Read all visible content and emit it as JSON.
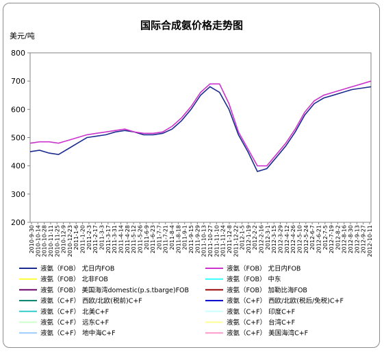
{
  "chart_data": {
    "type": "line",
    "title": "国际合成氨价格走势图",
    "ylabel": "美元/吨",
    "xlabel": "",
    "ylim": [
      200,
      800
    ],
    "y_ticks": [
      200,
      300,
      400,
      500,
      600,
      700,
      800
    ],
    "grid": false,
    "legend_position": "bottom",
    "x": [
      "2010-9-30",
      "2010-10-21",
      "2010-11-11",
      "2010-12-2",
      "2010-12-23",
      "2011-1-13",
      "2011-2-3",
      "2011-2-24",
      "2011-3-17",
      "2011-4-7",
      "2011-4-28",
      "2011-5-19",
      "2011-6-9",
      "2011-6-30",
      "2011-7-21",
      "2011-8-11",
      "2011-9-1",
      "2011-9-22",
      "2011-10-13",
      "2011-11-3",
      "2011-11-24",
      "2011-12-15",
      "2012-1-5",
      "2012-1-26",
      "2012-2-16",
      "2012-3-8",
      "2012-3-29",
      "2012-4-19",
      "2012-5-10",
      "2012-5-31",
      "2012-6-21",
      "2012-7-12",
      "2012-8-2",
      "2012-8-23",
      "2012-9-13",
      "2012-10-4",
      "2012-10-25"
    ],
    "x_tick_labels": [
      "2010-9-30",
      "2010-10-14",
      "2010-10-28",
      "2010-11-11",
      "2010-11-25",
      "2010-12-9",
      "2010-12-23",
      "2011-1-6",
      "2011-1-20",
      "2011-2-3",
      "2011-2-17",
      "2011-3-3",
      "2011-3-17",
      "2011-3-31",
      "2011-4-14",
      "2011-4-28",
      "2011-5-12",
      "2011-5-26",
      "2011-6-9",
      "2011-6-23",
      "2011-7-7",
      "2011-7-21",
      "2011-8-4",
      "2011-8-18",
      "2011-9-1",
      "2011-9-15",
      "2011-9-29",
      "2011-10-13",
      "2011-10-27",
      "2011-11-10",
      "2011-11-24",
      "2011-12-8",
      "2011-12-22",
      "2012-1-5",
      "2012-1-19",
      "2012-2-2",
      "2012-2-16",
      "2012-3-1",
      "2012-3-15",
      "2012-3-29",
      "2012-4-12",
      "2012-4-26",
      "2012-5-10",
      "2012-5-24",
      "2012-6-7",
      "2012-6-21",
      "2012-7-5",
      "2012-7-19",
      "2012-8-2",
      "2012-8-16",
      "2012-8-30",
      "2012-9-13",
      "2012-9-27",
      "2012-10-11"
    ],
    "series": [
      {
        "name": "液氨（FOB）  Yuzhny FOB",
        "label": "液氨（FOB） 尤日内FOB",
        "color": "#1b2a8f",
        "values": [
          450,
          455,
          445,
          440,
          460,
          480,
          500,
          505,
          510,
          520,
          525,
          520,
          510,
          510,
          515,
          530,
          560,
          600,
          650,
          680,
          660,
          600,
          510,
          450,
          380,
          390,
          430,
          470,
          520,
          580,
          620,
          640,
          650,
          660,
          670,
          675,
          680
        ]
      },
      {
        "name": "液氨（FOB） 尤日内FOB",
        "label": "液氨（FOB） 尤日内FOB",
        "color": "#cc33cc",
        "values": [
          480,
          485,
          485,
          480,
          490,
          500,
          510,
          515,
          520,
          525,
          530,
          520,
          515,
          515,
          520,
          540,
          570,
          610,
          660,
          690,
          690,
          620,
          520,
          460,
          400,
          400,
          440,
          480,
          530,
          590,
          630,
          650,
          660,
          670,
          680,
          690,
          700
        ]
      }
    ],
    "legend": [
      {
        "label": "液氨（FOB） 尤日内FOB",
        "color": "#1b2a8f"
      },
      {
        "label": "液氨（FOB） 尤日内FOB",
        "color": "#cc33cc"
      },
      {
        "label": "液氨（FOB） 北非FOB",
        "color": "#ffff33"
      },
      {
        "label": "液氨（FOB） 中东",
        "color": "#33ffff"
      },
      {
        "label": "液氨（FOB） 美国海湾domestic(p.s.tbarge)FOB",
        "color": "#660066"
      },
      {
        "label": "液氨（FOB） 加勒比海FOB",
        "color": "#990000"
      },
      {
        "label": "液氨（C+F） 西欧/北欧(税前)C+F",
        "color": "#00806b"
      },
      {
        "label": "液氨（C+F） 西欧/北欧(税后/免税)C+F",
        "color": "#0000cc"
      },
      {
        "label": "液氨（C+F） 北美C+F",
        "color": "#33cccc"
      },
      {
        "label": "液氨（C+F） 印度C+F",
        "color": "#ccffff"
      },
      {
        "label": "液氨（C+F） 远东C+F",
        "color": "#ccffcc"
      },
      {
        "label": "液氨（C+F） 台湾C+F",
        "color": "#ffff99"
      },
      {
        "label": "液氨（C+F） 地中海C+F",
        "color": "#99ccff"
      },
      {
        "label": "液氨（C+F） 美国海湾C+F",
        "color": "#ff99cc"
      }
    ]
  }
}
